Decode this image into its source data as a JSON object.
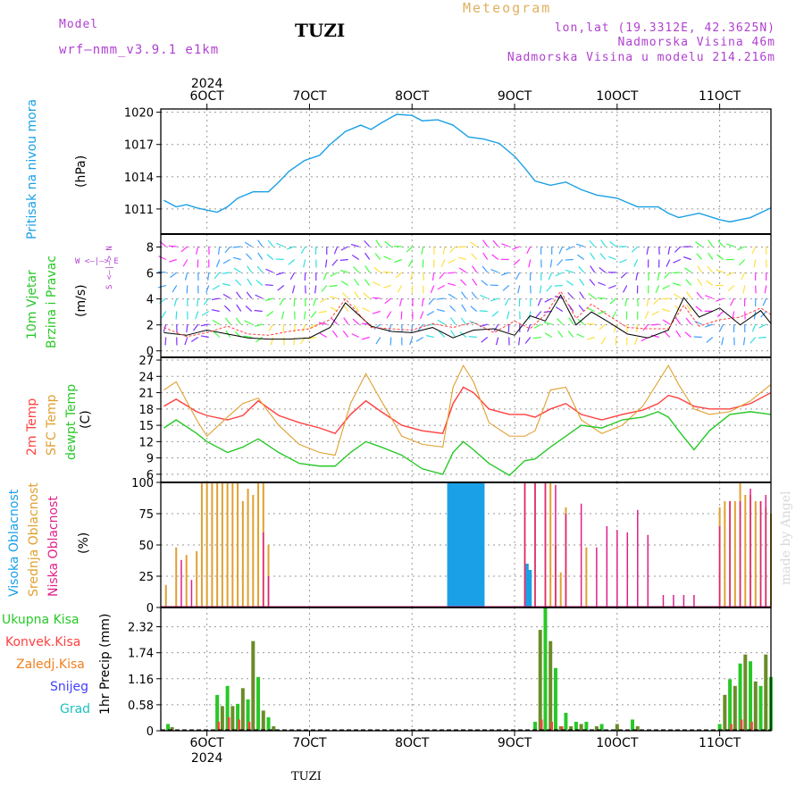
{
  "header": {
    "model_label": "Model",
    "model_name": "wrf—nmm_v3.9.1  e1km",
    "title": "TUZI",
    "meteogram_label": "Meteogram",
    "lonlat": "lon,lat (19.3312E, 42.3625N)",
    "elevation": "Nadmorska Visina 46m",
    "model_elevation": "Nadmorska Visina u modelu 214.216m",
    "watermark": "made by Angel",
    "footer_station": "TUZI"
  },
  "colors": {
    "pressure": "#1aa0e6",
    "violet": "#b040d0",
    "green": "#28c828",
    "red": "#ff4040",
    "orange": "#f08020",
    "gold": "#e0a030",
    "cyan": "#20c0c0",
    "blue": "#4040ff",
    "olive": "#6a8c28"
  },
  "time_axis": {
    "year_label": "2024",
    "days": [
      "6OCT",
      "7OCT",
      "8OCT",
      "9OCT",
      "10OCT",
      "11OCT"
    ]
  },
  "panels": {
    "pressure": {
      "label_line1": "Pritisak na nivou mora",
      "unit": "(hPa)"
    },
    "wind": {
      "label_line1": "10m Vjetar",
      "label_line2": "Brzina i Pravac",
      "unit": "(m/s)",
      "compass": "W <—|—> E",
      "compass_ns": "S <—|—> N"
    },
    "temp": {
      "label_line1": "2m Temp",
      "label_line2": "SFC Temp",
      "label_line3": "dewpt Temp",
      "unit": "(C)"
    },
    "cloud": {
      "label_line1": "Visoka Oblacnost",
      "label_line2": "Srednja Oblacnost",
      "label_line3": "Niska Oblacnost",
      "unit": "(%)"
    },
    "precip": {
      "legend": [
        "Ukupna Kisa",
        "Konvek.Kisa",
        "Zaledj.Kisa",
        "Snijeg",
        "Grad"
      ],
      "label": "1hr Precip (mm)"
    }
  },
  "chart_data": [
    {
      "type": "line",
      "title": "Pritisak na nivou mora",
      "ylabel": "(hPa)",
      "ylim": [
        1009,
        1020.3
      ],
      "yticks": [
        1011,
        1014,
        1017,
        1020
      ],
      "x": [
        5.58,
        5.7,
        5.8,
        5.9,
        6.0,
        6.1,
        6.2,
        6.3,
        6.45,
        6.6,
        6.7,
        6.8,
        6.95,
        7.1,
        7.2,
        7.35,
        7.5,
        7.6,
        7.7,
        7.85,
        8.0,
        8.1,
        8.25,
        8.4,
        8.55,
        8.7,
        8.85,
        9.0,
        9.1,
        9.2,
        9.35,
        9.5,
        9.65,
        9.8,
        10.0,
        10.2,
        10.4,
        10.5,
        10.6,
        10.8,
        11.0,
        11.1,
        11.3,
        11.5
      ],
      "series": [
        {
          "values": [
            1011.8,
            1011.2,
            1011.4,
            1011.1,
            1010.9,
            1010.7,
            1011.2,
            1012.0,
            1012.6,
            1012.6,
            1013.5,
            1014.5,
            1015.5,
            1016.0,
            1017.0,
            1018.2,
            1018.8,
            1018.4,
            1019.0,
            1019.8,
            1019.7,
            1019.2,
            1019.3,
            1018.8,
            1017.7,
            1017.5,
            1017.1,
            1015.9,
            1014.8,
            1013.6,
            1013.2,
            1013.5,
            1012.8,
            1012.3,
            1012.0,
            1011.2,
            1011.2,
            1010.6,
            1010.2,
            1010.6,
            1010.0,
            1009.8,
            1010.2,
            1011.1
          ]
        }
      ]
    },
    {
      "type": "line",
      "title": "10m Vjetar Brzina i Pravac",
      "ylabel": "(m/s)",
      "ylim": [
        -0.5,
        9
      ],
      "yticks": [
        0,
        2,
        4,
        6,
        8
      ],
      "x": [
        5.58,
        5.8,
        6.0,
        6.2,
        6.4,
        6.6,
        6.8,
        7.0,
        7.2,
        7.35,
        7.6,
        7.8,
        8.0,
        8.2,
        8.4,
        8.6,
        8.8,
        9.0,
        9.15,
        9.3,
        9.45,
        9.6,
        9.75,
        9.9,
        10.1,
        10.3,
        10.5,
        10.65,
        10.8,
        11.0,
        11.2,
        11.4,
        11.5
      ],
      "series": [
        {
          "name": "speed",
          "values": [
            1.4,
            1.2,
            1.6,
            1.3,
            1.0,
            0.9,
            0.9,
            1.0,
            1.8,
            3.7,
            1.9,
            1.5,
            1.4,
            1.8,
            1.0,
            1.6,
            1.7,
            1.2,
            2.7,
            2.3,
            4.3,
            2.0,
            3.0,
            2.3,
            1.3,
            1.0,
            1.6,
            4.1,
            2.6,
            3.3,
            2.0,
            3.1,
            2.1
          ]
        },
        {
          "name": "gust",
          "values": [
            1.8,
            1.1,
            1.4,
            1.9,
            1.3,
            1.2,
            1.5,
            1.7,
            2.4,
            4.0,
            1.8,
            1.7,
            1.6,
            2.1,
            1.8,
            2.2,
            1.4,
            2.3,
            1.7,
            2.8,
            4.6,
            2.5,
            3.6,
            2.8,
            1.8,
            1.7,
            1.7,
            3.5,
            1.9,
            2.4,
            2.6,
            3.3,
            2.8
          ]
        }
      ]
    },
    {
      "type": "line",
      "title": "2m Temp / SFC Temp / dewpt Temp",
      "ylabel": "(C)",
      "ylim": [
        4.5,
        27.5
      ],
      "yticks": [
        6,
        9,
        12,
        15,
        18,
        21,
        24,
        27
      ],
      "x": [
        5.58,
        5.7,
        5.9,
        6.0,
        6.2,
        6.35,
        6.5,
        6.7,
        6.9,
        7.1,
        7.25,
        7.4,
        7.55,
        7.7,
        7.9,
        8.1,
        8.3,
        8.4,
        8.5,
        8.6,
        8.75,
        8.95,
        9.1,
        9.2,
        9.35,
        9.5,
        9.65,
        9.85,
        10.05,
        10.25,
        10.4,
        10.5,
        10.6,
        10.75,
        10.9,
        11.1,
        11.3,
        11.5
      ],
      "series": [
        {
          "name": "2m Temp",
          "values": [
            18.5,
            19.8,
            17.5,
            16.8,
            16.0,
            16.8,
            19.5,
            16.8,
            15.5,
            14.5,
            13.5,
            17.0,
            19.5,
            17.5,
            15.0,
            14.0,
            13.5,
            19.0,
            22.0,
            21.0,
            18.0,
            17.0,
            17.0,
            16.5,
            18.0,
            19.0,
            17.0,
            16.0,
            17.0,
            17.8,
            19.0,
            20.5,
            20.0,
            18.5,
            18.0,
            18.0,
            19.0,
            21.0
          ]
        },
        {
          "name": "SFC Temp",
          "values": [
            21.5,
            23.0,
            16.0,
            13.0,
            16.5,
            19.0,
            20.0,
            15.0,
            11.5,
            10.0,
            9.5,
            19.0,
            24.5,
            19.5,
            13.0,
            11.5,
            11.0,
            22.0,
            26.0,
            23.0,
            15.5,
            13.0,
            13.0,
            14.0,
            21.5,
            22.0,
            16.0,
            13.5,
            15.0,
            18.5,
            23.0,
            26.0,
            22.5,
            18.0,
            17.0,
            17.5,
            19.5,
            22.5
          ]
        },
        {
          "name": "dewpt Temp",
          "values": [
            14.5,
            16.0,
            13.5,
            12.0,
            10.0,
            11.0,
            12.5,
            10.0,
            8.0,
            7.5,
            7.5,
            10.0,
            12.0,
            11.0,
            9.5,
            7.0,
            6.0,
            10.0,
            12.0,
            10.5,
            8.0,
            5.8,
            8.5,
            8.8,
            11.0,
            13.0,
            15.0,
            14.5,
            16.0,
            16.5,
            17.5,
            16.5,
            14.0,
            10.5,
            14.0,
            17.0,
            17.5,
            17.0
          ]
        }
      ]
    },
    {
      "type": "bar",
      "title": "Visoka / Srednja / Niska Oblacnost",
      "ylabel": "(%)",
      "ylim": [
        0,
        100
      ],
      "yticks": [
        0,
        25,
        50,
        75,
        100
      ],
      "series": [
        {
          "name": "Visoka Oblacnost",
          "x": [
            8.36,
            8.39,
            8.42,
            8.45,
            8.48,
            8.51,
            8.54,
            8.57,
            8.6,
            8.63,
            8.66,
            8.69,
            9.12,
            9.15
          ],
          "values": [
            100,
            100,
            100,
            100,
            100,
            100,
            100,
            100,
            100,
            100,
            100,
            100,
            35,
            30
          ]
        },
        {
          "name": "Srednja Oblacnost",
          "x": [
            5.6,
            5.7,
            5.8,
            5.9,
            5.95,
            6.0,
            6.05,
            6.1,
            6.15,
            6.2,
            6.25,
            6.3,
            6.35,
            6.4,
            6.45,
            6.5,
            6.55,
            6.6,
            9.1,
            9.2,
            9.3,
            9.35,
            9.4,
            9.45,
            9.5,
            9.7,
            11.0,
            11.05,
            11.1,
            11.15,
            11.2,
            11.25,
            11.3,
            11.35,
            11.4,
            11.45,
            11.5
          ],
          "values": [
            18,
            48,
            42,
            45,
            100,
            100,
            100,
            100,
            100,
            100,
            100,
            100,
            85,
            95,
            90,
            100,
            100,
            50,
            100,
            100,
            100,
            100,
            50,
            28,
            80,
            48,
            80,
            85,
            85,
            85,
            100,
            90,
            90,
            85,
            85,
            80,
            75
          ]
        },
        {
          "name": "Niska Oblacnost",
          "x": [
            5.75,
            5.85,
            6.55,
            6.6,
            9.1,
            9.2,
            9.3,
            9.4,
            9.5,
            9.65,
            9.8,
            9.9,
            10.0,
            10.1,
            10.2,
            10.3,
            10.45,
            10.55,
            10.65,
            10.75,
            11.0,
            11.1,
            11.2,
            11.3,
            11.4,
            11.45
          ],
          "values": [
            38,
            22,
            60,
            25,
            100,
            100,
            100,
            98,
            75,
            83,
            48,
            65,
            62,
            60,
            78,
            58,
            10,
            10,
            10,
            10,
            65,
            85,
            85,
            95,
            85,
            90
          ]
        }
      ]
    },
    {
      "type": "bar",
      "title": "1hr Precip",
      "ylabel": "1hr Precip (mm)",
      "ylim": [
        0,
        2.75
      ],
      "yticks": [
        0,
        0.58,
        1.16,
        1.74,
        2.32
      ],
      "series": [
        {
          "name": "Ukupna Kisa",
          "x": [
            5.62,
            5.66,
            6.1,
            6.15,
            6.2,
            6.25,
            6.3,
            6.35,
            6.4,
            6.45,
            6.5,
            6.55,
            6.6,
            6.65,
            9.2,
            9.25,
            9.3,
            9.35,
            9.4,
            9.45,
            9.5,
            9.55,
            9.6,
            9.65,
            9.7,
            9.8,
            9.85,
            10.0,
            10.15,
            10.2,
            11.0,
            11.05,
            11.1,
            11.15,
            11.2,
            11.25,
            11.3,
            11.35,
            11.4,
            11.45,
            11.5
          ],
          "values": [
            0.15,
            0.08,
            0.8,
            0.55,
            1.0,
            0.55,
            0.6,
            0.95,
            0.7,
            2.0,
            1.2,
            0.45,
            0.3,
            0.1,
            0.2,
            2.25,
            2.75,
            2.0,
            1.4,
            0.1,
            0.4,
            0.1,
            0.2,
            0.15,
            0.2,
            0.1,
            0.15,
            0.15,
            0.25,
            0.1,
            0.15,
            0.8,
            1.15,
            1.0,
            1.5,
            1.7,
            1.55,
            1.1,
            1.0,
            1.7,
            1.2
          ]
        },
        {
          "name": "Konvek.Kisa",
          "x": [
            6.12,
            6.22,
            6.32,
            6.42,
            9.27,
            9.37,
            9.47,
            11.12,
            11.22,
            11.32
          ],
          "values": [
            0.2,
            0.3,
            0.25,
            0.2,
            0.25,
            0.2,
            0.1,
            0.15,
            0.25,
            0.2
          ]
        }
      ]
    }
  ]
}
